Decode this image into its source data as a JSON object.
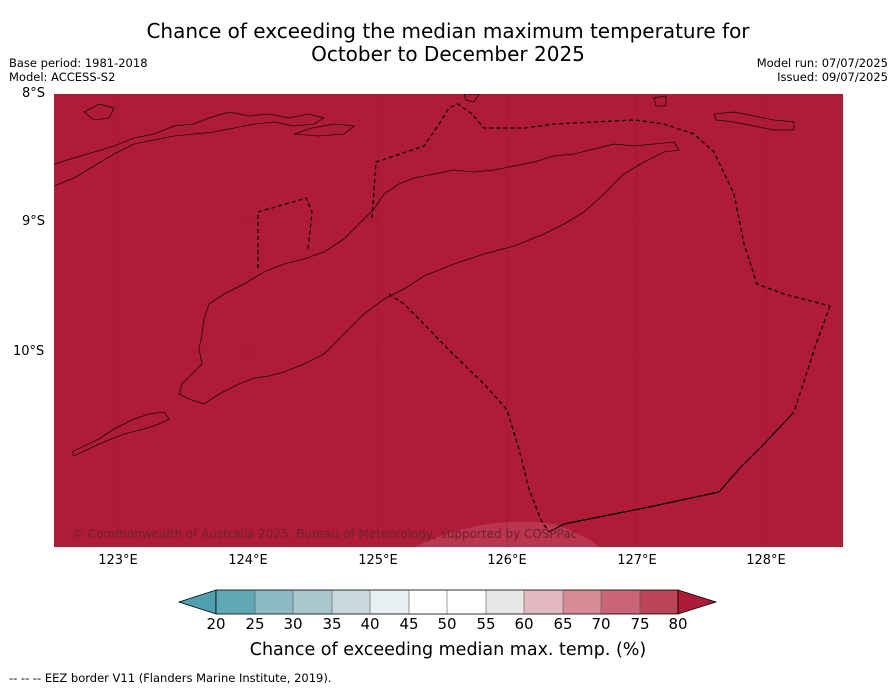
{
  "title_line1": "Chance of exceeding the median maximum temperature for",
  "title_line2": "October to December 2025",
  "base_period": "Base period: 1981-2018",
  "model": "Model: ACCESS-S2",
  "model_run": "Model run: 07/07/2025",
  "issued": "Issued: 09/07/2025",
  "latitude_labels": [
    "8°S",
    "9°S",
    "10°S"
  ],
  "longitude_labels": [
    "123°E",
    "124°E",
    "125°E",
    "126°E",
    "127°E",
    "128°E"
  ],
  "copyright": "© Commonwealth of Australia 2025, Bureau of Meteorology, supported by COSPPac",
  "colorbar": {
    "ticks": [
      "20",
      "25",
      "30",
      "35",
      "40",
      "45",
      "50",
      "55",
      "60",
      "65",
      "70",
      "75",
      "80"
    ],
    "label": "Chance of exceeding median max. temp. (%)",
    "colors": [
      "#5fa9b6",
      "#8bb9c4",
      "#a8c8cd",
      "#c7d9dc",
      "#e7eff0",
      "#ffffff",
      "#ffffff",
      "#e8e6e7",
      "#e2b8c1",
      "#d88a96",
      "#c96574",
      "#bb4456",
      "#ad1b38"
    ],
    "under_color": "#4f9fae",
    "over_color": "#ad1b38"
  },
  "map": {
    "fill_color": "#b01c38",
    "dominant_category": "80"
  },
  "footer": "--  --  -- EEZ border V11 (Flanders Marine Institute, 2019)."
}
